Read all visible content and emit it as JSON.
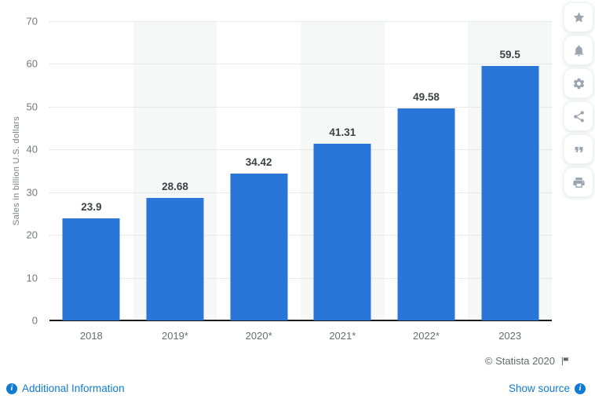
{
  "chart_data": {
    "type": "bar",
    "title": "",
    "categories": [
      "2018",
      "2019*",
      "2020*",
      "2021*",
      "2022*",
      "2023"
    ],
    "values": [
      23.9,
      28.68,
      34.42,
      41.31,
      49.58,
      59.5
    ],
    "value_labels": [
      "23.9",
      "28.68",
      "34.42",
      "41.31",
      "49.58",
      "59.5"
    ],
    "xlabel": "",
    "ylabel": "Sales in billion U.S. dollars",
    "ylim": [
      0,
      70
    ],
    "yticks": [
      0,
      10,
      20,
      30,
      40,
      50,
      60,
      70
    ],
    "grid": "horizontal-dotted",
    "legend": "none",
    "bar_color": "#2a76d8",
    "band_color": "#f6f7f7",
    "alternating_column_bands": true
  },
  "toolbar": {
    "buttons": [
      {
        "name": "favorite",
        "icon": "star-icon"
      },
      {
        "name": "notifications",
        "icon": "bell-icon"
      },
      {
        "name": "settings",
        "icon": "gear-icon"
      },
      {
        "name": "share",
        "icon": "share-icon"
      },
      {
        "name": "cite",
        "icon": "quote-icon"
      },
      {
        "name": "print",
        "icon": "printer-icon"
      }
    ]
  },
  "footer": {
    "copyright_text": "© Statista 2020",
    "additional_information_label": "Additional Information",
    "show_source_label": "Show source"
  },
  "colors": {
    "bar_blue": "#2a76d8",
    "link_blue": "#0f7cd2",
    "band_gray": "#f6f7f7",
    "gridline_gray": "#d9dadb",
    "axis_black": "#1c1c1c",
    "tick_text_gray": "#75777a",
    "value_text_dark": "#3e4145",
    "toolbar_icon_gray": "#9aa5b1",
    "copyright_gray": "#66696c"
  }
}
